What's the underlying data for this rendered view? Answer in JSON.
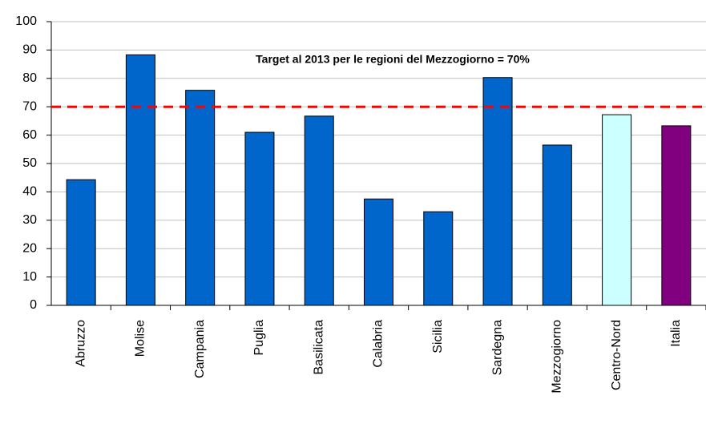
{
  "chart_data": {
    "type": "bar",
    "annotation": "Target al 2013 per le regioni del Mezzogiorno = 70%",
    "categories": [
      "Abruzzo",
      "Molise",
      "Campania",
      "Puglia",
      "Basilicata",
      "Calabria",
      "Sicilia",
      "Sardegna",
      "Mezzogiorno",
      "Centro-Nord",
      "Italia"
    ],
    "values": [
      44.3,
      88.3,
      75.8,
      61,
      66.7,
      37.5,
      33,
      80.3,
      56.5,
      67.2,
      63.3
    ],
    "colors": [
      "#0066cc",
      "#0066cc",
      "#0066cc",
      "#0066cc",
      "#0066cc",
      "#0066cc",
      "#0066cc",
      "#0066cc",
      "#0066cc",
      "#ccffff",
      "#800080"
    ],
    "reference_line": {
      "value": 70,
      "color": "#ff0000"
    },
    "ylim": [
      0,
      100
    ],
    "yticks": [
      0,
      10,
      20,
      30,
      40,
      50,
      60,
      70,
      80,
      90,
      100
    ],
    "grid": true
  }
}
